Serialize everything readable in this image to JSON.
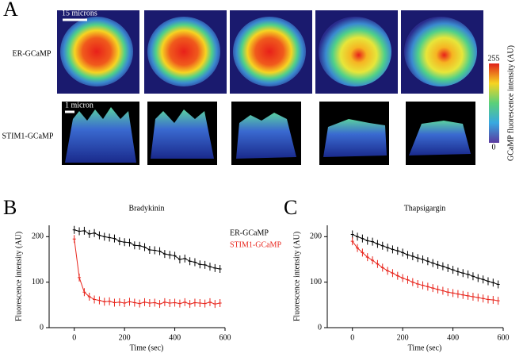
{
  "panel_a": {
    "label": "A",
    "row_labels": [
      "ER-GCaMP",
      "STIM1-GCaMP"
    ],
    "scale_top": "15 microns",
    "scale_bottom": "1 micron",
    "colorbar_label": "GCaMP fluorescence intensity (AU)",
    "colorbar_max": "255",
    "colorbar_min": "0"
  },
  "chart_data": [
    {
      "type": "line",
      "panel": "B",
      "title": "Bradykinin",
      "x_label": "Time (sec)",
      "y_label": "Fluorescence intensity (AU)",
      "xlim": [
        -100,
        600
      ],
      "xticks": [
        0,
        200,
        400,
        600
      ],
      "ylim": [
        0,
        225
      ],
      "yticks": [
        0,
        100,
        200
      ],
      "legend": "outside-right",
      "x": [
        0,
        20,
        40,
        60,
        80,
        100,
        120,
        140,
        160,
        180,
        200,
        220,
        240,
        260,
        280,
        300,
        320,
        340,
        360,
        380,
        400,
        420,
        440,
        460,
        480,
        500,
        520,
        540,
        560,
        580
      ],
      "series": [
        {
          "name": "ER-GCaMP",
          "color": "#000000",
          "values": [
            215,
            212,
            213,
            206,
            208,
            203,
            200,
            198,
            196,
            190,
            188,
            187,
            181,
            180,
            177,
            171,
            170,
            168,
            162,
            160,
            158,
            150,
            152,
            146,
            144,
            139,
            138,
            134,
            131,
            129
          ]
        },
        {
          "name": "STIM1-GCaMP",
          "color": "#e8251c",
          "values": [
            195,
            110,
            78,
            68,
            62,
            60,
            57,
            58,
            55,
            56,
            54,
            57,
            55,
            53,
            56,
            54,
            55,
            52,
            56,
            54,
            55,
            53,
            56,
            52,
            55,
            54,
            53,
            56,
            52,
            54
          ]
        }
      ]
    },
    {
      "type": "line",
      "panel": "C",
      "title": "Thapsigargin",
      "x_label": "Time (sec)",
      "y_label": "Fluorescence intensity (AU)",
      "xlim": [
        -100,
        600
      ],
      "xticks": [
        0,
        200,
        400,
        600
      ],
      "ylim": [
        0,
        225
      ],
      "yticks": [
        0,
        100,
        200
      ],
      "x": [
        0,
        20,
        40,
        60,
        80,
        100,
        120,
        140,
        160,
        180,
        200,
        220,
        240,
        260,
        280,
        300,
        320,
        340,
        360,
        380,
        400,
        420,
        440,
        460,
        480,
        500,
        520,
        540,
        560,
        580
      ],
      "series": [
        {
          "name": "ER-GCaMP",
          "color": "#000000",
          "values": [
            205,
            200,
            196,
            191,
            189,
            184,
            180,
            176,
            172,
            169,
            165,
            160,
            157,
            153,
            150,
            146,
            142,
            138,
            135,
            131,
            127,
            123,
            120,
            117,
            113,
            109,
            106,
            102,
            99,
            95
          ]
        },
        {
          "name": "STIM1-GCaMP",
          "color": "#e8251c",
          "values": [
            190,
            175,
            165,
            155,
            148,
            140,
            132,
            125,
            120,
            114,
            109,
            105,
            100,
            96,
            93,
            90,
            87,
            84,
            81,
            78,
            76,
            74,
            72,
            70,
            68,
            66,
            64,
            62,
            61,
            59
          ]
        }
      ]
    }
  ]
}
